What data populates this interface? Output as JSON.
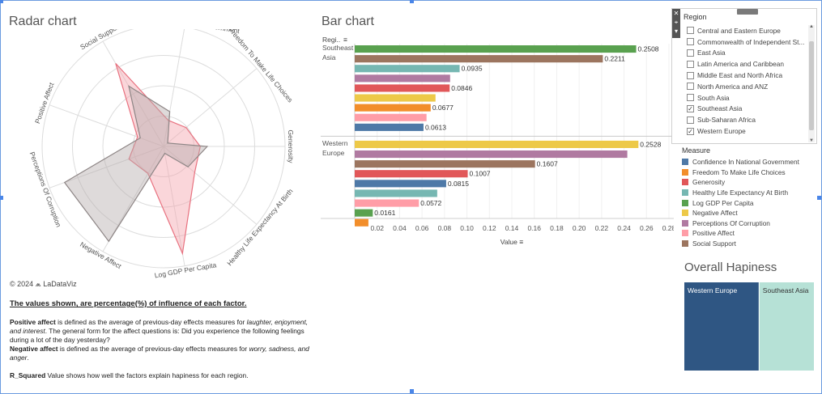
{
  "radar": {
    "title": "Radar chart",
    "copyright": "© 2024 ⩕ LaDataViz"
  },
  "bar": {
    "title": "Bar chart",
    "region_header": "Regi..",
    "x_label": "Value",
    "sort_icon": "sort-icon"
  },
  "overall": {
    "title": "Overall Hapiness"
  },
  "notes": {
    "headline": "The values shown, are percentage(%) of influence of each factor.",
    "pa_term": "Positive affect",
    "pa_text1": " is defined as the average of previous-day effects measures for ",
    "pa_italic": "laughter, enjoyment, and interest",
    "pa_text2": ". The general form for the affect questions is: Did you experience the following feelings during a lot of the day yesterday?",
    "na_term": "Negative affect",
    "na_text1": " is defined as the average of previous-day effects measures for ",
    "na_italic": "worry, sadness, and anger",
    "na_text2": ".",
    "r2_term": "R_Squared",
    "r2_text": " Value shows how well the factors explain hapiness for each region."
  },
  "region_filter": {
    "title": "Region",
    "items": [
      {
        "label": "Central and Eastern Europe",
        "checked": false
      },
      {
        "label": "Commonwealth of Independent St...",
        "checked": false
      },
      {
        "label": "East Asia",
        "checked": false
      },
      {
        "label": "Latin America and Caribbean",
        "checked": false
      },
      {
        "label": "Middle East and North Africa",
        "checked": false
      },
      {
        "label": "North America and ANZ",
        "checked": false
      },
      {
        "label": "South Asia",
        "checked": false
      },
      {
        "label": "Southeast Asia",
        "checked": true
      },
      {
        "label": "Sub-Saharan Africa",
        "checked": false
      },
      {
        "label": "Western Europe",
        "checked": true
      }
    ]
  },
  "measure_legend": {
    "title": "Measure",
    "items": [
      {
        "label": "Confidence In National Government",
        "color": "#4e79a7"
      },
      {
        "label": "Freedom To Make Life Choices",
        "color": "#f28e2b"
      },
      {
        "label": "Generosity",
        "color": "#e15759"
      },
      {
        "label": "Healthy Life Expectancy At Birth",
        "color": "#76b7b2"
      },
      {
        "label": "Log GDP Per Capita",
        "color": "#59a14f"
      },
      {
        "label": "Negative Affect",
        "color": "#edc948"
      },
      {
        "label": "Perceptions Of Corruption",
        "color": "#b07aa1"
      },
      {
        "label": "Positive Affect",
        "color": "#ff9da7"
      },
      {
        "label": "Social Support",
        "color": "#9c755f"
      }
    ]
  },
  "chart_data": [
    {
      "type": "radar",
      "title": "Radar chart",
      "axes": [
        "Confidence In National Government",
        "Freedom To Make Life Choices",
        "Generosity",
        "Healthy Life Expectancy At Birth",
        "Log GDP Per Capita",
        "Negative Affect",
        "Perceptions Of Corruption",
        "Positive Affect",
        "Social Support"
      ],
      "series": [
        {
          "name": "Southeast Asia",
          "color": "#f4a4ad",
          "values": [
            0.0613,
            0.0677,
            0.0846,
            0.0935,
            0.2508,
            0.072,
            0.085,
            0.064,
            0.2211
          ]
        },
        {
          "name": "Western Europe",
          "color": "#b5aeae",
          "values": [
            0.0815,
            0.0122,
            0.1007,
            0.0735,
            0.0161,
            0.2528,
            0.2429,
            0.0572,
            0.1607
          ]
        }
      ],
      "rlim": [
        0,
        0.28
      ]
    },
    {
      "type": "bar",
      "title": "Bar chart",
      "xlabel": "Value",
      "ylabel": "Regi..",
      "xlim": [
        0,
        0.28
      ],
      "xticks": [
        0.02,
        0.04,
        0.06,
        0.08,
        0.1,
        0.12,
        0.14,
        0.16,
        0.18,
        0.2,
        0.22,
        0.24,
        0.26,
        0.28
      ],
      "groups": [
        {
          "region": "Southeast Asia",
          "label_lines": [
            "Southeast",
            "Asia"
          ],
          "bars": [
            {
              "measure": "Log GDP Per Capita",
              "value": 0.2508,
              "label": "0.2508"
            },
            {
              "measure": "Social Support",
              "value": 0.2211,
              "label": "0.2211"
            },
            {
              "measure": "Healthy Life Expectancy At Birth",
              "value": 0.0935,
              "label": "0.0935"
            },
            {
              "measure": "Perceptions Of Corruption",
              "value": 0.085,
              "label": ""
            },
            {
              "measure": "Generosity",
              "value": 0.0846,
              "label": "0.0846"
            },
            {
              "measure": "Negative Affect",
              "value": 0.072,
              "label": ""
            },
            {
              "measure": "Freedom To Make Life Choices",
              "value": 0.0677,
              "label": "0.0677"
            },
            {
              "measure": "Positive Affect",
              "value": 0.064,
              "label": ""
            },
            {
              "measure": "Confidence In National Government",
              "value": 0.0613,
              "label": "0.0613"
            }
          ]
        },
        {
          "region": "Western Europe",
          "label_lines": [
            "Western",
            "Europe"
          ],
          "bars": [
            {
              "measure": "Negative Affect",
              "value": 0.2528,
              "label": "0.2528"
            },
            {
              "measure": "Perceptions Of Corruption",
              "value": 0.2429,
              "label": ""
            },
            {
              "measure": "Social Support",
              "value": 0.1607,
              "label": "0.1607"
            },
            {
              "measure": "Generosity",
              "value": 0.1007,
              "label": "0.1007"
            },
            {
              "measure": "Confidence In National Government",
              "value": 0.0815,
              "label": "0.0815"
            },
            {
              "measure": "Healthy Life Expectancy At Birth",
              "value": 0.0735,
              "label": ""
            },
            {
              "measure": "Positive Affect",
              "value": 0.0572,
              "label": "0.0572"
            },
            {
              "measure": "Log GDP Per Capita",
              "value": 0.0161,
              "label": "0.0161"
            },
            {
              "measure": "Freedom To Make Life Choices",
              "value": 0.0122,
              "label": ""
            }
          ]
        }
      ]
    },
    {
      "type": "treemap",
      "title": "Overall Hapiness",
      "items": [
        {
          "label": "Western Europe",
          "value": 0.58,
          "color": "#2f5683"
        },
        {
          "label": "Southeast Asia",
          "value": 0.42,
          "color": "#b6e1d6"
        }
      ]
    }
  ]
}
